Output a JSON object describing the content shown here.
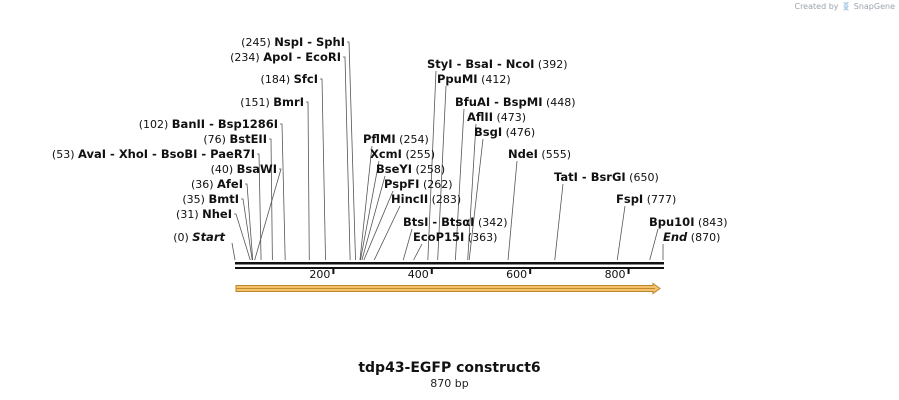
{
  "credit": {
    "text": "Created by",
    "brand": "SnapGene"
  },
  "construct": {
    "name": "tdp43-EGFP construct6",
    "length_label": "870 bp"
  },
  "sequence_length": 870,
  "ends": {
    "start": "Start",
    "start_pos": "(0)",
    "end": "End",
    "end_pos": "(870)"
  },
  "axis_ticks": [
    {
      "value": 200,
      "label": "200"
    },
    {
      "value": 400,
      "label": "400"
    },
    {
      "value": 600,
      "label": "600"
    },
    {
      "value": 800,
      "label": "800"
    }
  ],
  "left_sites": [
    {
      "pos": 245,
      "pos_label": "(245)",
      "names": [
        "NspI",
        "SphI"
      ]
    },
    {
      "pos": 234,
      "pos_label": "(234)",
      "names": [
        "ApoI",
        "EcoRI"
      ]
    },
    {
      "pos": 184,
      "pos_label": "(184)",
      "names": [
        "SfcI"
      ]
    },
    {
      "pos": 151,
      "pos_label": "(151)",
      "names": [
        "BmrI"
      ]
    },
    {
      "pos": 102,
      "pos_label": "(102)",
      "names": [
        "BanII",
        "Bsp1286I"
      ]
    },
    {
      "pos": 76,
      "pos_label": "(76)",
      "names": [
        "BstEII"
      ]
    },
    {
      "pos": 53,
      "pos_label": "(53)",
      "names": [
        "AvaI",
        "XhoI",
        "BsoBI",
        "PaeR7I"
      ]
    },
    {
      "pos": 40,
      "pos_label": "(40)",
      "names": [
        "BsaWI"
      ]
    },
    {
      "pos": 36,
      "pos_label": "(36)",
      "names": [
        "AfeI"
      ]
    },
    {
      "pos": 35,
      "pos_label": "(35)",
      "names": [
        "BmtI"
      ]
    },
    {
      "pos": 31,
      "pos_label": "(31)",
      "names": [
        "NheI"
      ]
    }
  ],
  "right_sites": [
    {
      "pos": 392,
      "pos_label": "(392)",
      "names": [
        "StyI",
        "BsaI",
        "NcoI"
      ]
    },
    {
      "pos": 412,
      "pos_label": "(412)",
      "names": [
        "PpuMI"
      ]
    },
    {
      "pos": 448,
      "pos_label": "(448)",
      "names": [
        "BfuAI",
        "BspMI"
      ]
    },
    {
      "pos": 473,
      "pos_label": "(473)",
      "names": [
        "AflII"
      ]
    },
    {
      "pos": 476,
      "pos_label": "(476)",
      "names": [
        "BsgI"
      ]
    },
    {
      "pos": 254,
      "pos_label": "(254)",
      "names": [
        "PflMI"
      ]
    },
    {
      "pos": 555,
      "pos_label": "(555)",
      "names": [
        "NdeI"
      ]
    },
    {
      "pos": 255,
      "pos_label": "(255)",
      "names": [
        "XcmI"
      ]
    },
    {
      "pos": 258,
      "pos_label": "(258)",
      "names": [
        "BseYI"
      ]
    },
    {
      "pos": 650,
      "pos_label": "(650)",
      "names": [
        "TatI",
        "BsrGI"
      ]
    },
    {
      "pos": 262,
      "pos_label": "(262)",
      "names": [
        "PspFI"
      ]
    },
    {
      "pos": 283,
      "pos_label": "(283)",
      "names": [
        "HincII"
      ]
    },
    {
      "pos": 777,
      "pos_label": "(777)",
      "names": [
        "FspI"
      ]
    },
    {
      "pos": 342,
      "pos_label": "(342)",
      "names": [
        "BtsI",
        "BtsαI"
      ]
    },
    {
      "pos": 843,
      "pos_label": "(843)",
      "names": [
        "Bpu10I"
      ]
    },
    {
      "pos": 363,
      "pos_label": "(363)",
      "names": [
        "EcoP15I"
      ]
    }
  ],
  "colors": {
    "feature_fill": "#f5c16c",
    "feature_stroke": "#b8862b",
    "backbone": "#111111",
    "line": "#555555"
  }
}
